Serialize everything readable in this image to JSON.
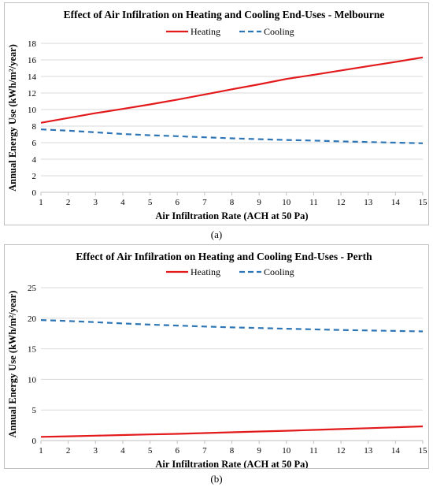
{
  "captions": [
    "(a)",
    "(b)"
  ],
  "chart_data": [
    {
      "type": "line",
      "title": "Effect of Air Infilration on Heating and Cooling End-Uses - Melbourne",
      "xlabel": "Air Infiltration Rate (ACH at 50 Pa)",
      "ylabel": "Annual Energy Use (kWh/m²/year)",
      "x": [
        1,
        2,
        3,
        4,
        5,
        6,
        7,
        8,
        9,
        10,
        11,
        12,
        13,
        14,
        15
      ],
      "xlim": [
        1,
        15
      ],
      "ylim": [
        0,
        18
      ],
      "yticks": [
        0,
        2,
        4,
        6,
        8,
        10,
        12,
        14,
        16,
        18
      ],
      "grid": true,
      "legend_position": "top",
      "series": [
        {
          "name": "Heating",
          "color": "#e31a1c",
          "dash": "solid",
          "values": [
            8.4,
            8.98,
            9.56,
            10.08,
            10.62,
            11.2,
            11.82,
            12.45,
            13.05,
            13.7,
            14.2,
            14.72,
            15.25,
            15.75,
            16.3
          ]
        },
        {
          "name": "Cooling",
          "color": "#2e75b6",
          "dash": "dashed",
          "values": [
            7.6,
            7.45,
            7.25,
            7.05,
            6.9,
            6.78,
            6.65,
            6.52,
            6.42,
            6.32,
            6.25,
            6.15,
            6.08,
            6.0,
            5.92
          ]
        }
      ]
    },
    {
      "type": "line",
      "title": "Effect of Air Infilration on Heating and Cooling End-Uses - Perth",
      "xlabel": "Air Infiltration Rate (ACH at 50 Pa)",
      "ylabel": "Annual Energy Use (kWh/m²/year)",
      "x": [
        1,
        2,
        3,
        4,
        5,
        6,
        7,
        8,
        9,
        10,
        11,
        12,
        13,
        14,
        15
      ],
      "xlim": [
        1,
        15
      ],
      "ylim": [
        0,
        25
      ],
      "yticks": [
        0,
        5,
        10,
        15,
        20,
        25
      ],
      "grid": true,
      "legend_position": "top",
      "series": [
        {
          "name": "Heating",
          "color": "#e31a1c",
          "dash": "solid",
          "values": [
            0.6,
            0.7,
            0.8,
            0.9,
            1.0,
            1.1,
            1.22,
            1.35,
            1.48,
            1.6,
            1.74,
            1.88,
            2.02,
            2.17,
            2.32
          ]
        },
        {
          "name": "Cooling",
          "color": "#2e75b6",
          "dash": "dashed",
          "values": [
            19.7,
            19.55,
            19.35,
            19.15,
            18.95,
            18.8,
            18.65,
            18.5,
            18.4,
            18.28,
            18.18,
            18.08,
            18.0,
            17.92,
            17.85
          ]
        }
      ]
    }
  ]
}
